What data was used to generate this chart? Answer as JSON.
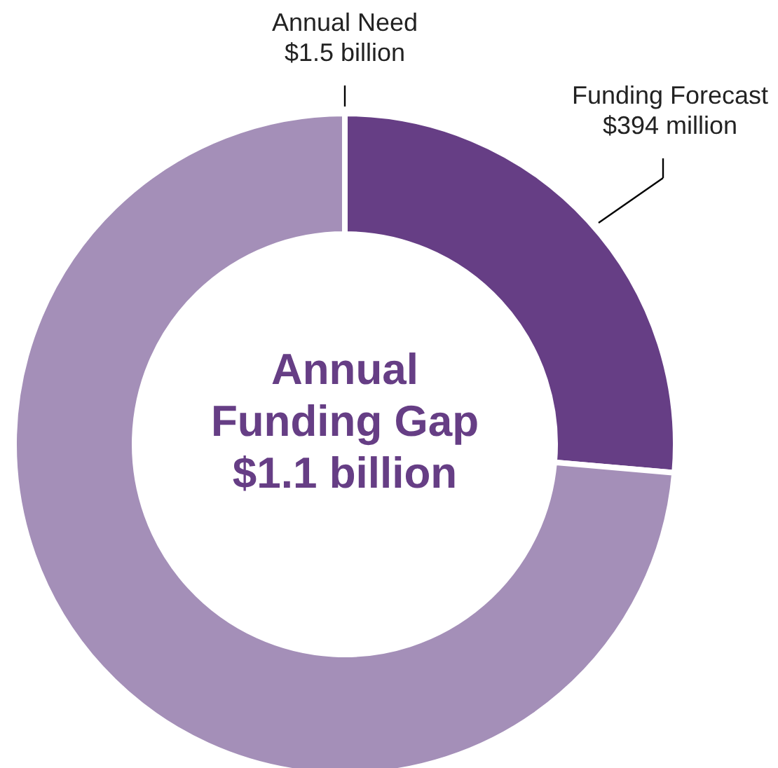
{
  "chart_data": {
    "type": "donut",
    "categories": [
      "Funding Forecast",
      "Annual\nFunding Gap"
    ],
    "values": [
      394,
      1100
    ],
    "colors": [
      "#663e85",
      "#a48fb8"
    ],
    "value_labels": [
      "$394 million",
      null
    ],
    "annotations": [
      "Annual Need\n$1.5 billion",
      "$1.1 billion"
    ]
  }
}
